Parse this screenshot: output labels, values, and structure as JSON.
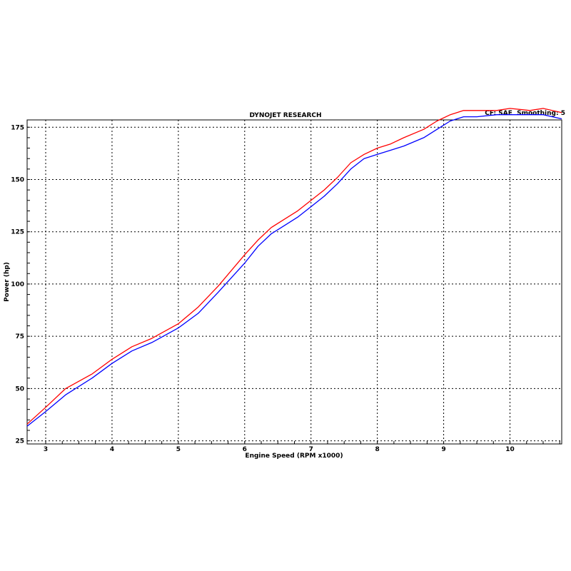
{
  "chart_data": {
    "type": "line",
    "title": "DYNOJET RESEARCH",
    "corner_label": "CF: SAE  Smoothing: 5",
    "xlabel": "Engine Speed (RPM x1000)",
    "ylabel": "Power (hp)",
    "xlim": [
      2.72,
      10.78
    ],
    "ylim": [
      23.5,
      178.5
    ],
    "x_ticks": [
      3,
      4,
      5,
      6,
      7,
      8,
      9,
      10
    ],
    "y_ticks": [
      25,
      50,
      75,
      100,
      125,
      150,
      175
    ],
    "grid": true,
    "series": [
      {
        "color": "#ff0000",
        "x": [
          2.72,
          3.0,
          3.3,
          3.7,
          4.0,
          4.3,
          4.6,
          5.0,
          5.3,
          5.6,
          6.0,
          6.2,
          6.4,
          6.6,
          6.8,
          7.0,
          7.2,
          7.4,
          7.6,
          7.8,
          8.0,
          8.2,
          8.4,
          8.7,
          8.9,
          9.1,
          9.3,
          9.5,
          9.8,
          10.0,
          10.3,
          10.5,
          10.78
        ],
        "y": [
          33,
          41,
          50,
          57,
          64,
          70,
          74,
          81,
          89,
          99,
          114,
          121,
          127,
          131,
          135,
          140,
          145,
          151,
          158,
          162,
          165,
          167,
          170,
          174,
          178,
          181,
          183,
          183,
          183,
          184,
          183,
          184,
          182
        ]
      },
      {
        "color": "#0000ff",
        "x": [
          2.72,
          3.0,
          3.3,
          3.7,
          4.0,
          4.3,
          4.6,
          5.0,
          5.3,
          5.6,
          6.0,
          6.2,
          6.4,
          6.6,
          6.8,
          7.0,
          7.2,
          7.4,
          7.6,
          7.8,
          8.0,
          8.2,
          8.4,
          8.7,
          8.9,
          9.1,
          9.3,
          9.5,
          9.8,
          10.0,
          10.3,
          10.5,
          10.78
        ],
        "y": [
          32,
          39,
          47,
          55,
          62,
          68,
          72,
          79,
          86,
          96,
          110,
          118,
          124,
          128,
          132,
          137,
          142,
          148,
          155,
          160,
          162,
          164,
          166,
          170,
          174,
          178,
          180,
          180,
          181,
          181,
          181,
          181,
          179
        ]
      }
    ]
  }
}
